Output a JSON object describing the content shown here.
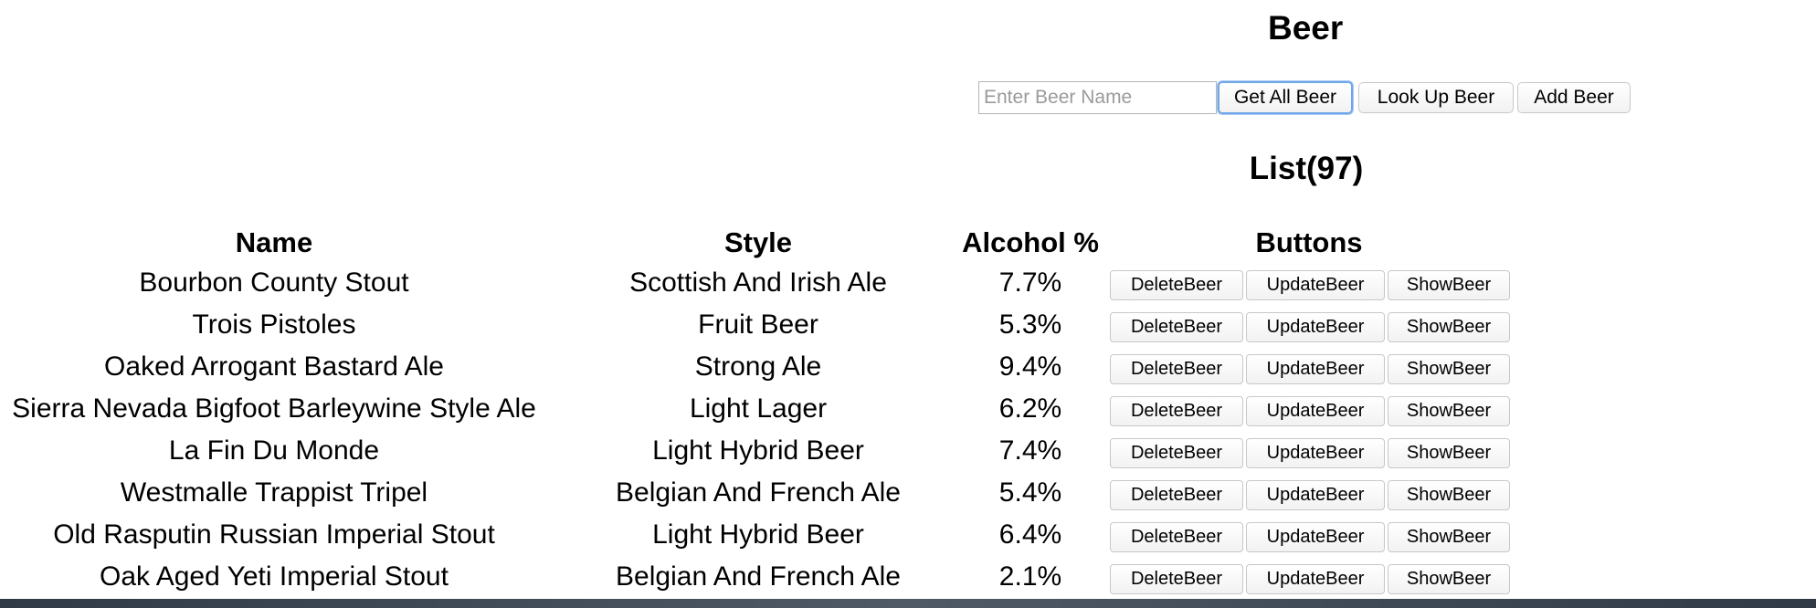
{
  "header": {
    "title": "Beer"
  },
  "search": {
    "placeholder": "Enter Beer Name",
    "value": ""
  },
  "toolbar": {
    "get_all_label": "Get All Beer",
    "look_up_label": "Look Up Beer",
    "add_label": "Add Beer"
  },
  "list": {
    "title": "List(97)"
  },
  "table": {
    "headers": {
      "name": "Name",
      "style": "Style",
      "abv": "Alcohol %",
      "buttons": "Buttons"
    },
    "button_labels": {
      "delete": "DeleteBeer",
      "update": "UpdateBeer",
      "show": "ShowBeer"
    },
    "rows": [
      {
        "name": "Bourbon County Stout",
        "style": "Scottish And Irish Ale",
        "abv": "7.7%"
      },
      {
        "name": "Trois Pistoles",
        "style": "Fruit Beer",
        "abv": "5.3%"
      },
      {
        "name": "Oaked Arrogant Bastard Ale",
        "style": "Strong Ale",
        "abv": "9.4%"
      },
      {
        "name": "Sierra Nevada Bigfoot Barleywine Style Ale",
        "style": "Light Lager",
        "abv": "6.2%"
      },
      {
        "name": "La Fin Du Monde",
        "style": "Light Hybrid Beer",
        "abv": "7.4%"
      },
      {
        "name": "Westmalle Trappist Tripel",
        "style": "Belgian And French Ale",
        "abv": "5.4%"
      },
      {
        "name": "Old Rasputin Russian Imperial Stout",
        "style": "Light Hybrid Beer",
        "abv": "6.4%"
      },
      {
        "name": "Oak Aged Yeti Imperial Stout",
        "style": "Belgian And French Ale",
        "abv": "2.1%"
      }
    ]
  }
}
